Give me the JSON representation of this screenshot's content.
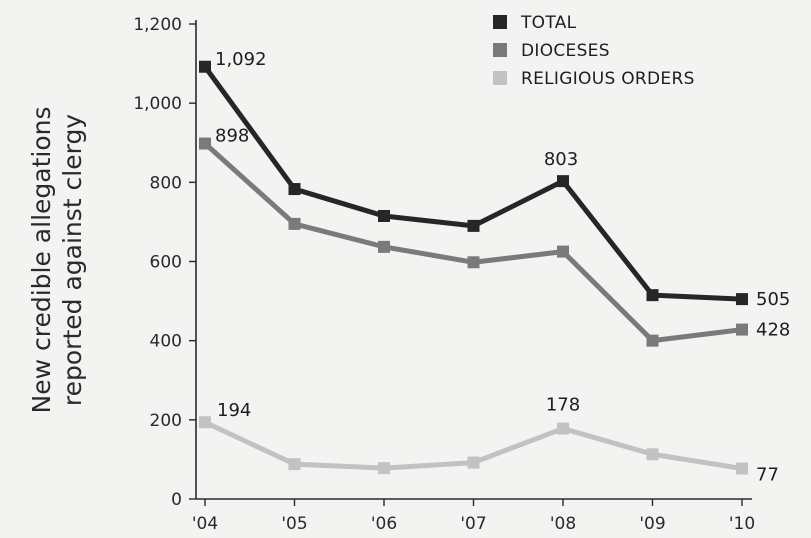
{
  "chart_data": {
    "type": "line",
    "title": "",
    "xlabel": "",
    "ylabel_lines": [
      "New credible allegations",
      "reported against clergy"
    ],
    "categories": [
      "'04",
      "'05",
      "'06",
      "'07",
      "'08",
      "'09",
      "'10"
    ],
    "ylim": [
      0,
      1200
    ],
    "yticks": [
      0,
      200,
      400,
      600,
      800,
      1000,
      1200
    ],
    "ytick_labels": [
      "0",
      "200",
      "400",
      "600",
      "800",
      "1,000",
      "1,200"
    ],
    "grid": false,
    "legend_position": "top-right",
    "series": [
      {
        "name": "TOTAL",
        "color": "#262626",
        "values": [
          1092,
          783,
          715,
          690,
          803,
          515,
          505
        ]
      },
      {
        "name": "DIOCESES",
        "color": "#7a7a7a",
        "values": [
          898,
          695,
          637,
          598,
          625,
          400,
          428
        ]
      },
      {
        "name": "RELIGIOUS ORDERS",
        "color": "#c2c2c2",
        "values": [
          194,
          88,
          78,
          92,
          178,
          113,
          77
        ]
      }
    ],
    "annotations": [
      {
        "series": 0,
        "index": 0,
        "text": "1,092"
      },
      {
        "series": 1,
        "index": 0,
        "text": "898"
      },
      {
        "series": 0,
        "index": 4,
        "text": "803"
      },
      {
        "series": 0,
        "index": 6,
        "text": "505"
      },
      {
        "series": 1,
        "index": 6,
        "text": "428"
      },
      {
        "series": 2,
        "index": 0,
        "text": "194"
      },
      {
        "series": 2,
        "index": 4,
        "text": "178"
      },
      {
        "series": 2,
        "index": 6,
        "text": "77"
      }
    ]
  }
}
